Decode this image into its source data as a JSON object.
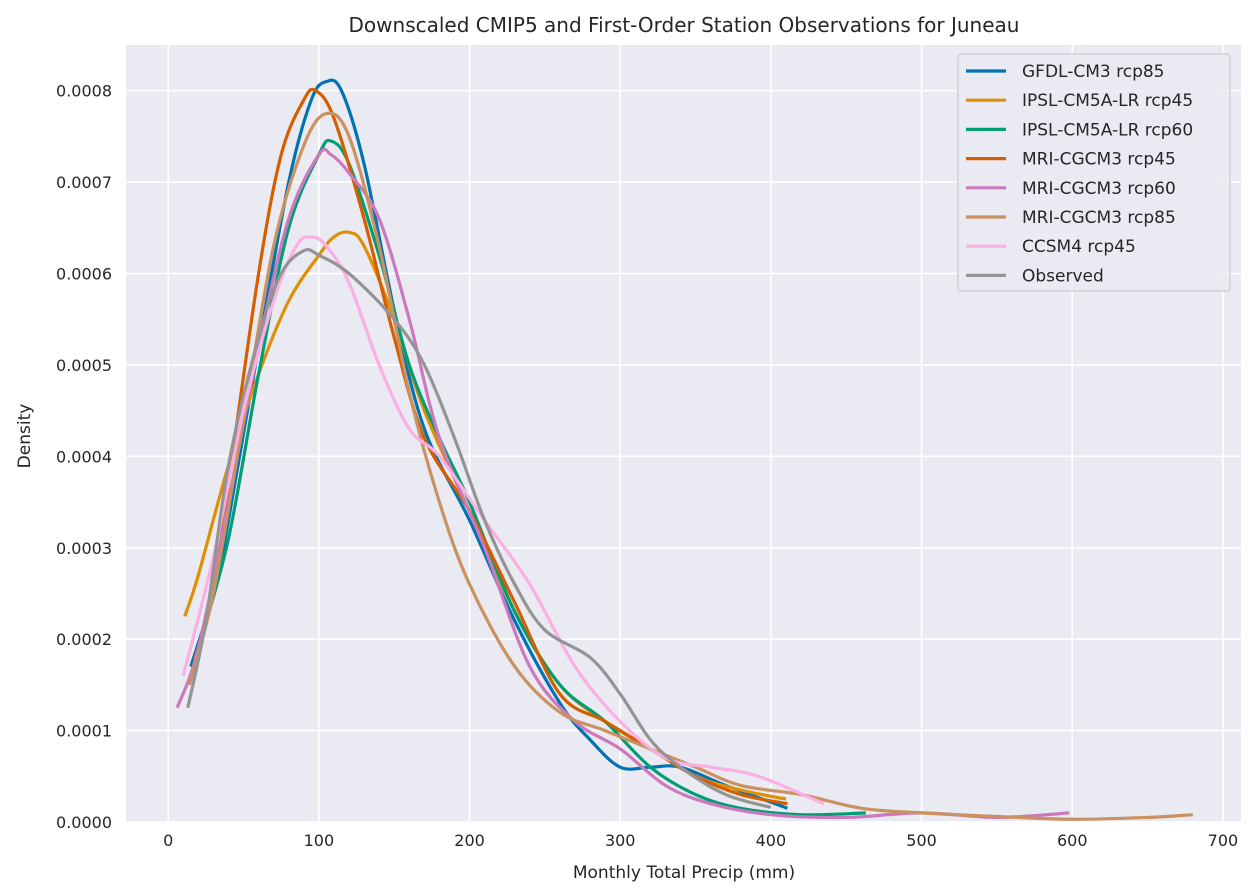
{
  "chart_data": {
    "type": "line",
    "title": "Downscaled CMIP5 and First-Order Station Observations for Juneau",
    "xlabel": "Monthly Total Precip (mm)",
    "ylabel": "Density",
    "xlim": [
      -28,
      712
    ],
    "ylim": [
      0,
      0.00085
    ],
    "xticks": [
      0,
      100,
      200,
      300,
      400,
      500,
      600,
      700
    ],
    "xtick_labels": [
      "0",
      "100",
      "200",
      "300",
      "400",
      "500",
      "600",
      "700"
    ],
    "yticks": [
      0,
      0.0001,
      0.0002,
      0.0003,
      0.0004,
      0.0005,
      0.0006,
      0.0007,
      0.0008
    ],
    "ytick_labels": [
      "0.0000",
      "0.0001",
      "0.0002",
      "0.0003",
      "0.0004",
      "0.0005",
      "0.0006",
      "0.0007",
      "0.0008"
    ],
    "grid": true,
    "legend_position": "top-right",
    "series": [
      {
        "name": "GFDL-CM3 rcp85",
        "color": "#0173b2",
        "points": [
          [
            15,
            0.00017
          ],
          [
            30,
            0.00025
          ],
          [
            40,
            0.00033
          ],
          [
            60,
            0.00052
          ],
          [
            80,
            0.0007
          ],
          [
            95,
            0.00079
          ],
          [
            105,
            0.00081
          ],
          [
            115,
            0.0008
          ],
          [
            130,
            0.00072
          ],
          [
            150,
            0.00056
          ],
          [
            170,
            0.00043
          ],
          [
            200,
            0.00033
          ],
          [
            230,
            0.00022
          ],
          [
            260,
            0.00013
          ],
          [
            280,
            9e-05
          ],
          [
            300,
            6e-05
          ],
          [
            320,
            6e-05
          ],
          [
            340,
            6e-05
          ],
          [
            370,
            4e-05
          ],
          [
            411,
            1.5e-05
          ]
        ]
      },
      {
        "name": "IPSL-CM5A-LR rcp45",
        "color": "#de8f05",
        "points": [
          [
            11,
            0.000225
          ],
          [
            20,
            0.00027
          ],
          [
            40,
            0.00039
          ],
          [
            60,
            0.00049
          ],
          [
            80,
            0.00057
          ],
          [
            100,
            0.00062
          ],
          [
            110,
            0.00064
          ],
          [
            120,
            0.000645
          ],
          [
            130,
            0.00063
          ],
          [
            150,
            0.00055
          ],
          [
            170,
            0.00045
          ],
          [
            200,
            0.00034
          ],
          [
            230,
            0.00023
          ],
          [
            260,
            0.00015
          ],
          [
            290,
            0.00011
          ],
          [
            320,
            8e-05
          ],
          [
            350,
            5e-05
          ],
          [
            380,
            3.5e-05
          ],
          [
            410,
            2.5e-05
          ]
        ]
      },
      {
        "name": "IPSL-CM5A-LR rcp60",
        "color": "#029e73",
        "points": [
          [
            14,
            0.000155
          ],
          [
            20,
            0.00019
          ],
          [
            40,
            0.00031
          ],
          [
            60,
            0.00049
          ],
          [
            80,
            0.00065
          ],
          [
            100,
            0.00073
          ],
          [
            108,
            0.000745
          ],
          [
            120,
            0.00072
          ],
          [
            140,
            0.00062
          ],
          [
            160,
            0.0005
          ],
          [
            180,
            0.00042
          ],
          [
            200,
            0.00035
          ],
          [
            230,
            0.00023
          ],
          [
            260,
            0.00015
          ],
          [
            290,
            0.00011
          ],
          [
            320,
            6e-05
          ],
          [
            350,
            3e-05
          ],
          [
            380,
            1.5e-05
          ],
          [
            420,
            8e-06
          ],
          [
            463,
            1e-05
          ]
        ]
      },
      {
        "name": "MRI-CGCM3 rcp45",
        "color": "#d55e00",
        "points": [
          [
            18,
            0.00018
          ],
          [
            30,
            0.00025
          ],
          [
            40,
            0.00037
          ],
          [
            60,
            0.0006
          ],
          [
            75,
            0.00073
          ],
          [
            90,
            0.00079
          ],
          [
            98,
            0.0008
          ],
          [
            110,
            0.00077
          ],
          [
            130,
            0.00066
          ],
          [
            150,
            0.00053
          ],
          [
            170,
            0.00042
          ],
          [
            200,
            0.00034
          ],
          [
            230,
            0.00024
          ],
          [
            260,
            0.00014
          ],
          [
            290,
            0.00011
          ],
          [
            320,
            8e-05
          ],
          [
            350,
            5e-05
          ],
          [
            380,
            3e-05
          ],
          [
            411,
            2e-05
          ]
        ]
      },
      {
        "name": "MRI-CGCM3 rcp60",
        "color": "#cc78bc",
        "points": [
          [
            6,
            0.000125
          ],
          [
            20,
            0.00019
          ],
          [
            40,
            0.00035
          ],
          [
            60,
            0.00052
          ],
          [
            80,
            0.00066
          ],
          [
            100,
            0.00073
          ],
          [
            108,
            0.00073
          ],
          [
            120,
            0.00071
          ],
          [
            140,
            0.00066
          ],
          [
            160,
            0.00055
          ],
          [
            180,
            0.00042
          ],
          [
            210,
            0.0003
          ],
          [
            240,
            0.00017
          ],
          [
            270,
            0.00011
          ],
          [
            300,
            8e-05
          ],
          [
            330,
            4e-05
          ],
          [
            360,
            2e-05
          ],
          [
            400,
            8e-06
          ],
          [
            450,
            5e-06
          ],
          [
            500,
            1e-05
          ],
          [
            550,
            5e-06
          ],
          [
            598,
            1e-05
          ]
        ]
      },
      {
        "name": "MRI-CGCM3 rcp85",
        "color": "#ca9161",
        "points": [
          [
            14,
            0.00015
          ],
          [
            30,
            0.00025
          ],
          [
            50,
            0.00044
          ],
          [
            70,
            0.00063
          ],
          [
            90,
            0.00074
          ],
          [
            105,
            0.000775
          ],
          [
            120,
            0.00075
          ],
          [
            140,
            0.00063
          ],
          [
            160,
            0.00047
          ],
          [
            180,
            0.00035
          ],
          [
            200,
            0.00026
          ],
          [
            230,
            0.00017
          ],
          [
            260,
            0.00012
          ],
          [
            290,
            0.0001
          ],
          [
            320,
            8e-05
          ],
          [
            350,
            6e-05
          ],
          [
            380,
            4e-05
          ],
          [
            420,
            3e-05
          ],
          [
            460,
            1.5e-05
          ],
          [
            500,
            1e-05
          ],
          [
            550,
            6e-06
          ],
          [
            600,
            3e-06
          ],
          [
            650,
            5e-06
          ],
          [
            680,
            8e-06
          ]
        ]
      },
      {
        "name": "CCSM4 rcp45",
        "color": "#fbafe4",
        "points": [
          [
            10,
            0.00016
          ],
          [
            30,
            0.00029
          ],
          [
            50,
            0.00045
          ],
          [
            70,
            0.00057
          ],
          [
            85,
            0.00063
          ],
          [
            95,
            0.00064
          ],
          [
            105,
            0.00063
          ],
          [
            120,
            0.00059
          ],
          [
            140,
            0.0005
          ],
          [
            160,
            0.00043
          ],
          [
            180,
            0.0004
          ],
          [
            210,
            0.00033
          ],
          [
            240,
            0.00026
          ],
          [
            270,
            0.00017
          ],
          [
            300,
            0.00011
          ],
          [
            330,
            7e-05
          ],
          [
            360,
            6e-05
          ],
          [
            380,
            5.5e-05
          ],
          [
            400,
            4.5e-05
          ],
          [
            435,
            2e-05
          ]
        ]
      },
      {
        "name": "Observed",
        "color": "#949494",
        "points": [
          [
            13,
            0.000125
          ],
          [
            25,
            0.00022
          ],
          [
            40,
            0.00039
          ],
          [
            60,
            0.00053
          ],
          [
            75,
            0.0006
          ],
          [
            90,
            0.000625
          ],
          [
            100,
            0.00062
          ],
          [
            120,
            0.0006
          ],
          [
            150,
            0.00055
          ],
          [
            170,
            0.0005
          ],
          [
            190,
            0.00042
          ],
          [
            210,
            0.00033
          ],
          [
            230,
            0.00026
          ],
          [
            250,
            0.00021
          ],
          [
            280,
            0.00018
          ],
          [
            300,
            0.00014
          ],
          [
            320,
            9e-05
          ],
          [
            340,
            6e-05
          ],
          [
            370,
            3e-05
          ],
          [
            400,
            1.6e-05
          ]
        ]
      }
    ]
  }
}
